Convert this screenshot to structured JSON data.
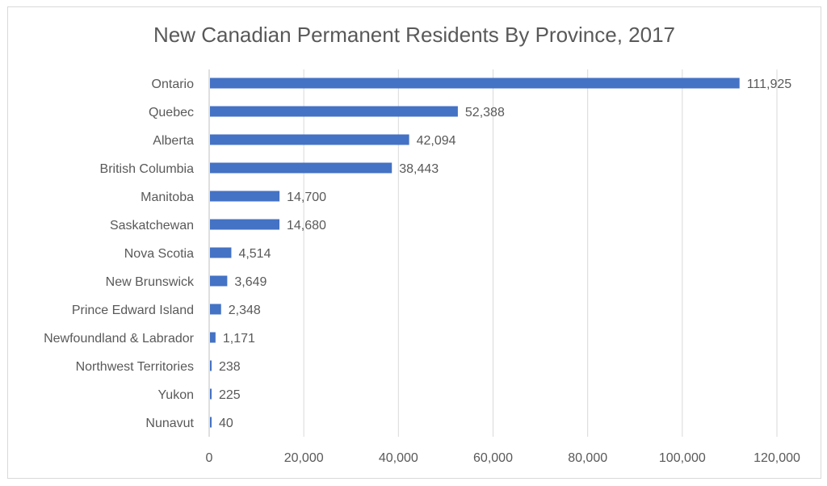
{
  "chart_data": {
    "type": "bar",
    "orientation": "horizontal",
    "title": "New Canadian Permanent Residents By Province, 2017",
    "xlabel": "",
    "ylabel": "",
    "categories": [
      "Ontario",
      "Quebec",
      "Alberta",
      "British Columbia",
      "Manitoba",
      "Saskatchewan",
      "Nova Scotia",
      "New Brunswick",
      "Prince Edward Island",
      "Newfoundland & Labrador",
      "Northwest Territories",
      "Yukon",
      "Nunavut"
    ],
    "values": [
      111925,
      52388,
      42094,
      38443,
      14700,
      14680,
      4514,
      3649,
      2348,
      1171,
      238,
      225,
      40
    ],
    "data_labels": [
      "111,925",
      "52,388",
      "42,094",
      "38,443",
      "14,700",
      "14,680",
      "4,514",
      "3,649",
      "2,348",
      "1,171",
      "238",
      "225",
      "40"
    ],
    "xlim": [
      0,
      120000
    ],
    "x_ticks": [
      0,
      20000,
      40000,
      60000,
      80000,
      100000,
      120000
    ],
    "x_tick_labels": [
      "0",
      "20,000",
      "40,000",
      "60,000",
      "80,000",
      "100,000",
      "120,000"
    ],
    "grid": "vertical",
    "legend": "none",
    "colors": {
      "bar": "#4472C4",
      "grid": "#d9d9d9",
      "text": "#595959"
    }
  }
}
